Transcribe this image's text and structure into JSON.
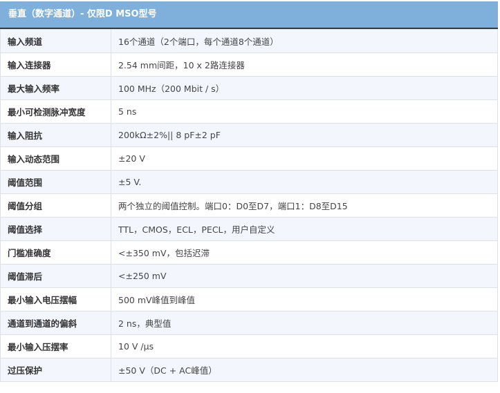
{
  "title": "垂直（数字通道）- 仅限D MSO型号",
  "colors": {
    "header_bg": "#7fb0dc",
    "row_alt": "#f3f7fd"
  },
  "rows": [
    {
      "label": "输入频道",
      "value": "16个通道（2个端口，每个通道8个通道）"
    },
    {
      "label": "输入连接器",
      "value": "2.54 mm间距，10 x 2路连接器"
    },
    {
      "label": "最大输入频率",
      "value": "100 MHz（200 Mbit / s）"
    },
    {
      "label": "最小可检测脉冲宽度",
      "value": "5 ns"
    },
    {
      "label": "输入阻抗",
      "value": "200kΩ±2%|| 8 pF±2 pF"
    },
    {
      "label": "输入动态范围",
      "value": "±20 V"
    },
    {
      "label": "阈值范围",
      "value": "±5 V."
    },
    {
      "label": "阈值分组",
      "value": "两个独立的阈值控制。端口0：D0至D7，端口1：D8至D15"
    },
    {
      "label": "阈值选择",
      "value": "TTL，CMOS，ECL，PECL，用户自定义"
    },
    {
      "label": "门槛准确度",
      "value": "<±350 mV，包括迟滞"
    },
    {
      "label": "阈值滞后",
      "value": "<±250 mV"
    },
    {
      "label": "最小输入电压摆幅",
      "value": "500 mV峰值到峰值"
    },
    {
      "label": "通道到通道的偏斜",
      "value": "2 ns，典型值"
    },
    {
      "label": "最小输入压摆率",
      "value": "10 V /μs"
    },
    {
      "label": "过压保护",
      "value": "±50 V（DC + AC峰值）"
    }
  ]
}
